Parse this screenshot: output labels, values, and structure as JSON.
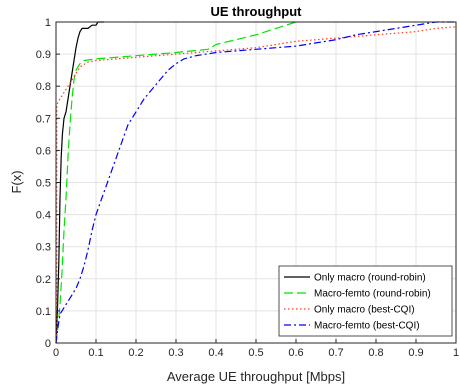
{
  "chart_data": {
    "type": "line",
    "title": "UE throughput",
    "xlabel": "Average UE throughput [Mbps]",
    "ylabel": "F(x)",
    "xlim": [
      0,
      1
    ],
    "ylim": [
      0,
      1
    ],
    "xticks": [
      "0",
      "0.1",
      "0.2",
      "0.3",
      "0.4",
      "0.5",
      "0.6",
      "0.7",
      "0.8",
      "0.9",
      "1"
    ],
    "yticks": [
      "0",
      "0.1",
      "0.2",
      "0.3",
      "0.4",
      "0.5",
      "0.6",
      "0.7",
      "0.8",
      "0.9",
      "1"
    ],
    "grid": true,
    "legend_position": "bottom-right",
    "series": [
      {
        "name": "Only macro (round-robin)",
        "color": "#000000",
        "dash": "solid",
        "x": [
          0.0,
          0.002,
          0.004,
          0.007,
          0.01,
          0.013,
          0.016,
          0.02,
          0.025,
          0.03,
          0.035,
          0.04,
          0.045,
          0.05,
          0.055,
          0.06,
          0.065,
          0.07,
          0.08,
          0.09,
          0.1,
          0.105,
          0.11,
          0.115,
          0.12
        ],
        "y": [
          0.0,
          0.05,
          0.12,
          0.25,
          0.45,
          0.58,
          0.65,
          0.7,
          0.72,
          0.76,
          0.8,
          0.84,
          0.88,
          0.92,
          0.95,
          0.97,
          0.98,
          0.98,
          0.98,
          0.99,
          0.99,
          1.0,
          1.0,
          1.0,
          1.0
        ]
      },
      {
        "name": "Macro-femto (round-robin)",
        "color": "#00e400",
        "dash": "long-dash",
        "x": [
          0.0,
          0.005,
          0.01,
          0.015,
          0.02,
          0.025,
          0.03,
          0.035,
          0.04,
          0.045,
          0.05,
          0.06,
          0.07,
          0.1,
          0.2,
          0.3,
          0.38,
          0.4,
          0.45,
          0.5,
          0.55,
          0.6
        ],
        "y": [
          0.0,
          0.05,
          0.12,
          0.22,
          0.35,
          0.45,
          0.58,
          0.68,
          0.76,
          0.82,
          0.85,
          0.87,
          0.88,
          0.885,
          0.895,
          0.905,
          0.915,
          0.93,
          0.945,
          0.96,
          0.98,
          1.0
        ]
      },
      {
        "name": "Only macro (best-CQI)",
        "color": "#ff3b1f",
        "dash": "dotted",
        "x": [
          0.0,
          0.002,
          0.002,
          0.005,
          0.01,
          0.02,
          0.04,
          0.06,
          0.08,
          0.1,
          0.2,
          0.3,
          0.4,
          0.5,
          0.6,
          0.7,
          0.8,
          0.9,
          0.95,
          1.0
        ],
        "y": [
          0.0,
          0.0,
          0.74,
          0.75,
          0.76,
          0.78,
          0.82,
          0.86,
          0.875,
          0.88,
          0.89,
          0.9,
          0.91,
          0.92,
          0.94,
          0.95,
          0.96,
          0.97,
          0.98,
          0.985
        ]
      },
      {
        "name": "Macro-femto (best-CQI)",
        "color": "#0000ff",
        "dash": "dash-dot",
        "x": [
          0.0,
          0.005,
          0.01,
          0.02,
          0.03,
          0.04,
          0.05,
          0.06,
          0.07,
          0.08,
          0.09,
          0.1,
          0.12,
          0.14,
          0.16,
          0.18,
          0.2,
          0.22,
          0.24,
          0.26,
          0.28,
          0.3,
          0.32,
          0.35,
          0.4,
          0.45,
          0.5,
          0.55,
          0.6,
          0.65,
          0.7,
          0.75,
          0.8,
          0.85,
          0.9,
          0.95,
          1.0
        ],
        "y": [
          0.0,
          0.05,
          0.09,
          0.11,
          0.13,
          0.15,
          0.17,
          0.2,
          0.24,
          0.29,
          0.35,
          0.4,
          0.47,
          0.54,
          0.61,
          0.68,
          0.72,
          0.76,
          0.79,
          0.82,
          0.85,
          0.87,
          0.885,
          0.895,
          0.905,
          0.91,
          0.915,
          0.92,
          0.925,
          0.935,
          0.945,
          0.96,
          0.97,
          0.98,
          0.99,
          1.0,
          1.0
        ]
      }
    ]
  }
}
